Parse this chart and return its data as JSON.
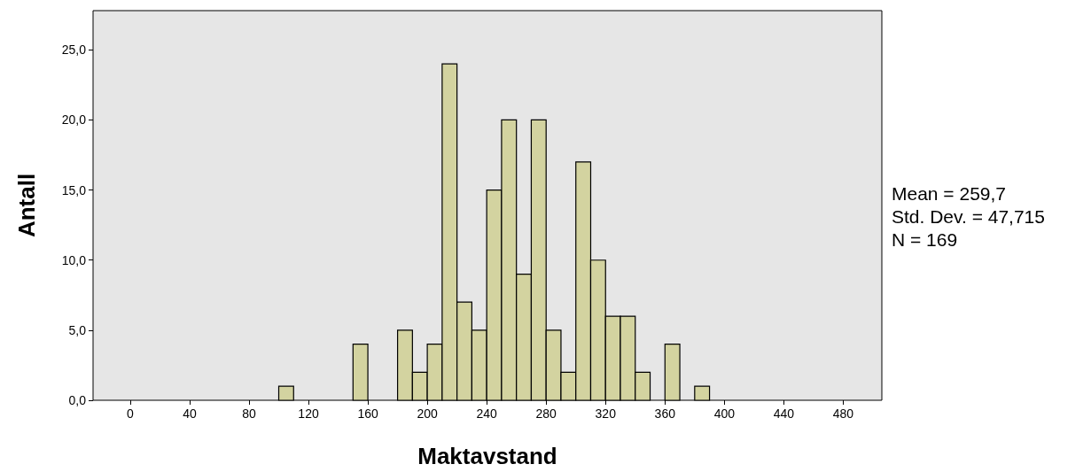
{
  "chart_data": {
    "type": "histogram",
    "xlabel": "Maktavstand",
    "ylabel": "Antall",
    "bins": [
      100,
      110,
      120,
      130,
      140,
      150,
      160,
      170,
      180,
      190,
      200,
      210,
      220,
      230,
      240,
      250,
      260,
      270,
      280,
      290,
      300,
      310,
      320,
      330,
      340,
      350,
      360,
      370,
      380,
      390
    ],
    "values": [
      1,
      0,
      0,
      0,
      0,
      4,
      0,
      0,
      5,
      2,
      4,
      24,
      7,
      5,
      15,
      20,
      9,
      20,
      5,
      2,
      17,
      10,
      6,
      6,
      2,
      0,
      4,
      0,
      1
    ],
    "color": "#d3d3a0",
    "xlim": [
      -25,
      506
    ],
    "xticks": [
      0,
      40,
      80,
      120,
      160,
      200,
      240,
      280,
      320,
      360,
      400,
      440,
      480
    ],
    "ylim": [
      0,
      27.8
    ],
    "yticks": [
      {
        "value": 0,
        "label": "0,0"
      },
      {
        "value": 5,
        "label": "5,0"
      },
      {
        "value": 10,
        "label": "10,0"
      },
      {
        "value": 15,
        "label": "15,0"
      },
      {
        "value": 20,
        "label": "20,0"
      },
      {
        "value": 25,
        "label": "25,0"
      }
    ],
    "grid": false,
    "annotations": [
      "Mean = 259,7",
      "Std. Dev. = 47,715",
      "N = 169"
    ]
  }
}
